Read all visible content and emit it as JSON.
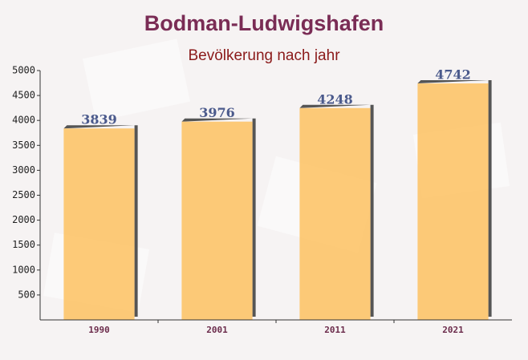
{
  "chart_data": {
    "type": "bar",
    "title": "Bodman-Ludwigshafen",
    "subtitle": "Bevölkerung nach jahr",
    "categories": [
      "1990",
      "2001",
      "2011",
      "2021"
    ],
    "values": [
      3839,
      3976,
      4248,
      4742
    ],
    "color": "#fdc469",
    "ylim": [
      0,
      5000
    ],
    "yticks": [
      500,
      1000,
      1500,
      2000,
      2500,
      3000,
      3500,
      4000,
      4500,
      5000
    ],
    "grid": false
  }
}
